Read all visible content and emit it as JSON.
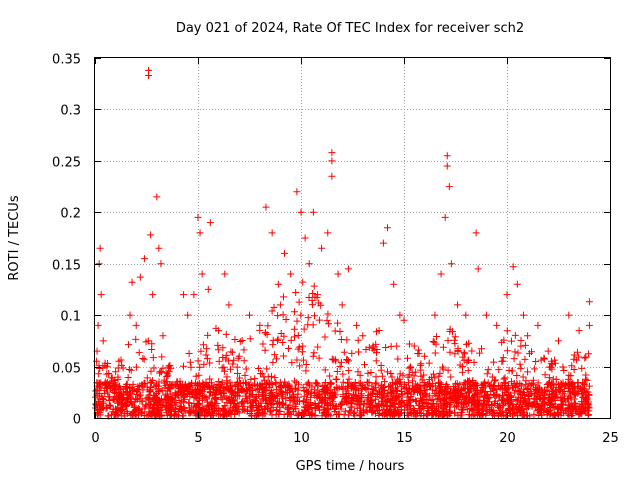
{
  "chart_data": {
    "type": "scatter",
    "title": "Day 021 of 2024, Rate Of TEC Index for receiver sch2",
    "xlabel": "GPS time / hours",
    "ylabel": "ROTI / TECUs",
    "xlim": [
      0,
      25
    ],
    "ylim": [
      0,
      0.35
    ],
    "xticks": [
      0,
      5,
      10,
      15,
      20,
      25
    ],
    "xtick_labels": [
      "0",
      "5",
      "10",
      "15",
      "20",
      "25"
    ],
    "yticks": [
      0,
      0.05,
      0.1,
      0.15,
      0.2,
      0.25,
      0.3,
      0.35
    ],
    "ytick_labels": [
      "0",
      "0.05",
      "0.1",
      "0.15",
      "0.2",
      "0.25",
      "0.3",
      "0.35"
    ],
    "grid": true,
    "marker": "+",
    "marker_color": "#ff0000",
    "series": [
      {
        "name": "ROTI",
        "points": [
          [
            0.1,
            0.065
          ],
          [
            0.15,
            0.09
          ],
          [
            0.2,
            0.15
          ],
          [
            0.25,
            0.165
          ],
          [
            0.3,
            0.12
          ],
          [
            0.4,
            0.075
          ],
          [
            0.5,
            0.035
          ],
          [
            1.0,
            0.045
          ],
          [
            1.5,
            0.03
          ],
          [
            1.7,
            0.1
          ],
          [
            1.8,
            0.132
          ],
          [
            2.0,
            0.09
          ],
          [
            2.2,
            0.137
          ],
          [
            2.4,
            0.155
          ],
          [
            2.6,
            0.338
          ],
          [
            2.6,
            0.333
          ],
          [
            2.7,
            0.178
          ],
          [
            2.8,
            0.12
          ],
          [
            3.0,
            0.215
          ],
          [
            3.1,
            0.165
          ],
          [
            3.2,
            0.15
          ],
          [
            3.3,
            0.08
          ],
          [
            3.6,
            0.045
          ],
          [
            4.0,
            0.035
          ],
          [
            4.3,
            0.12
          ],
          [
            4.5,
            0.1
          ],
          [
            4.8,
            0.12
          ],
          [
            5.0,
            0.195
          ],
          [
            5.1,
            0.18
          ],
          [
            5.2,
            0.14
          ],
          [
            5.5,
            0.125
          ],
          [
            5.6,
            0.19
          ],
          [
            6.0,
            0.085
          ],
          [
            6.3,
            0.14
          ],
          [
            6.5,
            0.11
          ],
          [
            7.0,
            0.06
          ],
          [
            7.5,
            0.1
          ],
          [
            8.0,
            0.09
          ],
          [
            8.3,
            0.205
          ],
          [
            8.6,
            0.18
          ],
          [
            8.9,
            0.13
          ],
          [
            9.0,
            0.11
          ],
          [
            9.2,
            0.16
          ],
          [
            9.5,
            0.14
          ],
          [
            9.8,
            0.22
          ],
          [
            10.0,
            0.2
          ],
          [
            10.2,
            0.175
          ],
          [
            10.4,
            0.15
          ],
          [
            10.6,
            0.2
          ],
          [
            10.8,
            0.12
          ],
          [
            11.0,
            0.165
          ],
          [
            11.3,
            0.18
          ],
          [
            11.5,
            0.258
          ],
          [
            11.5,
            0.25
          ],
          [
            11.5,
            0.235
          ],
          [
            11.8,
            0.14
          ],
          [
            12.0,
            0.11
          ],
          [
            12.3,
            0.145
          ],
          [
            12.7,
            0.09
          ],
          [
            13.0,
            0.08
          ],
          [
            13.5,
            0.07
          ],
          [
            14.0,
            0.17
          ],
          [
            14.2,
            0.185
          ],
          [
            14.5,
            0.13
          ],
          [
            14.8,
            0.1
          ],
          [
            15.0,
            0.095
          ],
          [
            15.5,
            0.07
          ],
          [
            16.0,
            0.06
          ],
          [
            16.5,
            0.1
          ],
          [
            16.8,
            0.14
          ],
          [
            17.0,
            0.195
          ],
          [
            17.1,
            0.255
          ],
          [
            17.1,
            0.245
          ],
          [
            17.2,
            0.225
          ],
          [
            17.3,
            0.15
          ],
          [
            17.6,
            0.11
          ],
          [
            18.0,
            0.1
          ],
          [
            18.5,
            0.18
          ],
          [
            18.6,
            0.145
          ],
          [
            19.0,
            0.1
          ],
          [
            19.5,
            0.09
          ],
          [
            20.0,
            0.12
          ],
          [
            20.3,
            0.147
          ],
          [
            20.5,
            0.13
          ],
          [
            20.8,
            0.1
          ],
          [
            21.0,
            0.08
          ],
          [
            21.5,
            0.09
          ],
          [
            22.0,
            0.065
          ],
          [
            22.5,
            0.075
          ],
          [
            23.0,
            0.1
          ],
          [
            23.5,
            0.085
          ],
          [
            24.0,
            0.113
          ],
          [
            24.0,
            0.09
          ]
        ],
        "dense_band": {
          "x_range": [
            0,
            24
          ],
          "baseline_min": 0.002,
          "baseline_max": 0.035,
          "envelope": [
            [
              0,
              0.06
            ],
            [
              1,
              0.05
            ],
            [
              2,
              0.085
            ],
            [
              3,
              0.07
            ],
            [
              4,
              0.045
            ],
            [
              5,
              0.08
            ],
            [
              6,
              0.09
            ],
            [
              7,
              0.075
            ],
            [
              8,
              0.09
            ],
            [
              9,
              0.13
            ],
            [
              10,
              0.145
            ],
            [
              11,
              0.12
            ],
            [
              12,
              0.095
            ],
            [
              13,
              0.07
            ],
            [
              14,
              0.1
            ],
            [
              15,
              0.08
            ],
            [
              16,
              0.065
            ],
            [
              17,
              0.09
            ],
            [
              18,
              0.08
            ],
            [
              19,
              0.065
            ],
            [
              20,
              0.085
            ],
            [
              21,
              0.075
            ],
            [
              22,
              0.055
            ],
            [
              23,
              0.06
            ],
            [
              24,
              0.07
            ]
          ]
        }
      }
    ]
  }
}
